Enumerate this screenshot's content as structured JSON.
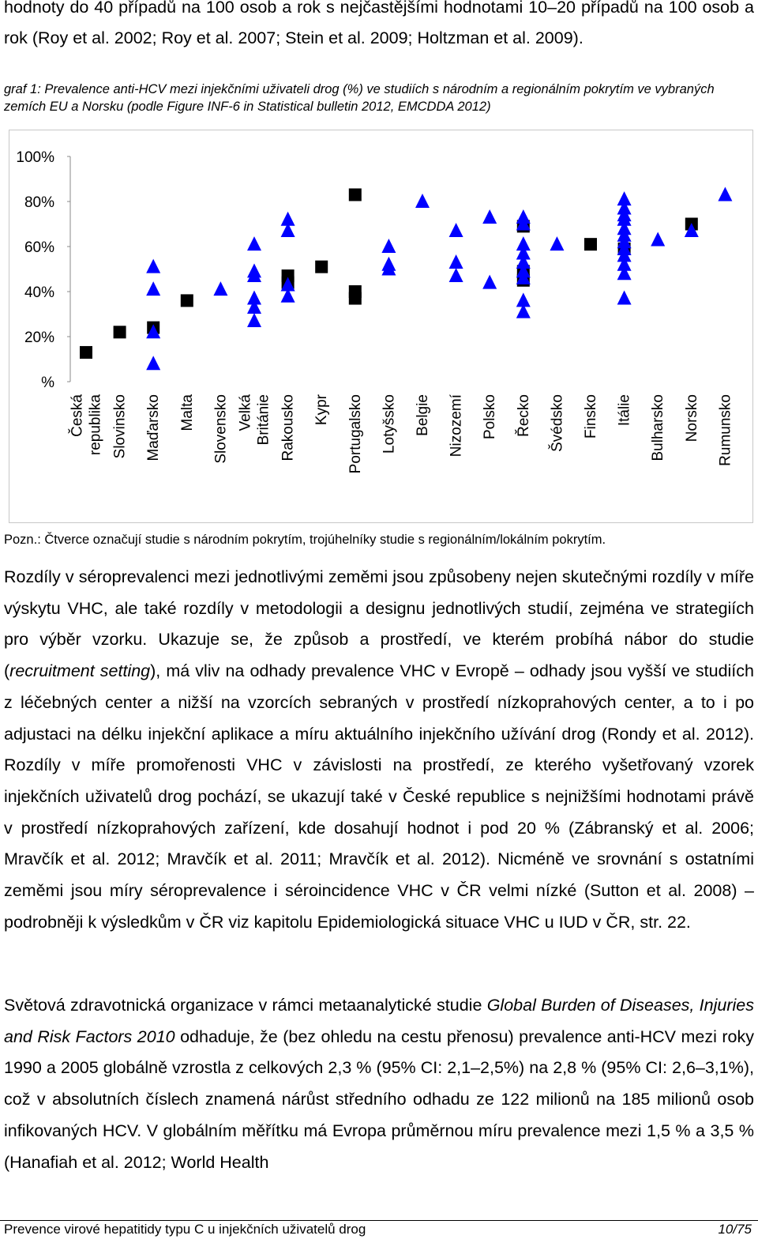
{
  "intro": "hodnoty do 40 případů na 100 osob a rok s nejčastějšími hodnotami 10–20 případů na 100 osob a rok (Roy et al. 2002; Roy et al. 2007; Stein et al. 2009; Holtzman et al. 2009).",
  "caption": "graf 1: Prevalence anti-HCV mezi injekčními uživateli drog (%) ve studiích s národním a regionálním pokrytím ve vybraných zemích EU a Norsku (podle Figure INF-6 in Statistical bulletin 2012, EMCDDA 2012)",
  "chart_data": {
    "type": "scatter",
    "title": "",
    "ylabel": "",
    "ylim": [
      0,
      100
    ],
    "yticks": [
      {
        "value": 0,
        "label": "%"
      },
      {
        "value": 20,
        "label": "20%"
      },
      {
        "value": 40,
        "label": "40%"
      },
      {
        "value": 60,
        "label": "60%"
      },
      {
        "value": 80,
        "label": "80%"
      },
      {
        "value": 100,
        "label": "100%"
      }
    ],
    "categories": [
      {
        "lines": [
          "Česká",
          "republika"
        ]
      },
      {
        "lines": [
          "Slovinsko"
        ]
      },
      {
        "lines": [
          "Maďarsko"
        ]
      },
      {
        "lines": [
          "Malta"
        ]
      },
      {
        "lines": [
          "Slovensko"
        ]
      },
      {
        "lines": [
          "Velká",
          "Británie"
        ]
      },
      {
        "lines": [
          "Rakousko"
        ]
      },
      {
        "lines": [
          "Kypr"
        ]
      },
      {
        "lines": [
          "Portugalsko"
        ]
      },
      {
        "lines": [
          "Lotyšsko"
        ]
      },
      {
        "lines": [
          "Belgie"
        ]
      },
      {
        "lines": [
          "Nizozemí"
        ]
      },
      {
        "lines": [
          "Polsko"
        ]
      },
      {
        "lines": [
          "Řecko"
        ]
      },
      {
        "lines": [
          "Švédsko"
        ]
      },
      {
        "lines": [
          "Finsko"
        ]
      },
      {
        "lines": [
          "Itálie"
        ]
      },
      {
        "lines": [
          "Bulharsko"
        ]
      },
      {
        "lines": [
          "Norsko"
        ]
      },
      {
        "lines": [
          "Rumunsko"
        ]
      }
    ],
    "series": [
      {
        "name": "národní pokrytí (čtverce)",
        "marker": "square",
        "values": [
          [
            13
          ],
          [
            22
          ],
          [
            24
          ],
          [
            36
          ],
          [],
          [],
          [
            47,
            44
          ],
          [
            51
          ],
          [
            83,
            40,
            37
          ],
          [],
          [],
          [],
          [],
          [
            69,
            49,
            45
          ],
          [],
          [
            61
          ],
          [
            59
          ],
          [],
          [
            70
          ],
          []
        ]
      },
      {
        "name": "regionální/lokální pokrytí (trojúhelníky)",
        "marker": "triangle",
        "values": [
          [],
          [],
          [
            51,
            41,
            22,
            8
          ],
          [],
          [
            41
          ],
          [
            61,
            49,
            47,
            37,
            33,
            27
          ],
          [
            72,
            67,
            43,
            38
          ],
          [],
          [],
          [
            60,
            52,
            50
          ],
          [
            80
          ],
          [
            67,
            53,
            47
          ],
          [
            73,
            44
          ],
          [
            73,
            70,
            61,
            57,
            53,
            49,
            46,
            36,
            31
          ],
          [
            61
          ],
          [],
          [
            81,
            77,
            74,
            72,
            68,
            65,
            62,
            59,
            56,
            52,
            48,
            37
          ],
          [
            63
          ],
          [
            67
          ],
          [
            83
          ]
        ]
      }
    ]
  },
  "note": "Pozn.: Čtverce označují studie s národním pokrytím, trojúhelníky studie s regionálním/lokálním pokrytím.",
  "para1": {
    "t1": "Rozdíly v séroprevalenci mezi jednotlivými zeměmi jsou způsobeny nejen skutečnými rozdíly v míře výskytu VHC, ale také rozdíly v metodologii a designu jednotlivých studií, zejména ve strategiích pro výběr vzorku. Ukazuje se, že způsob a prostředí, ve kterém probíhá nábor do studie (",
    "t2": "recruitment setting",
    "t3": "), má vliv na odhady prevalence VHC v Evropě – odhady jsou vyšší ve studiích z léčebných center a nižší na vzorcích sebraných v prostředí nízkoprahových center, a to i po adjustaci na délku injekční aplikace a míru aktuálního injekčního užívání drog (Rondy et al. 2012). Rozdíly v míře promořenosti VHC v závislosti na prostředí, ze kterého vyšetřovaný vzorek injekčních uživatelů drog pochází, se ukazují také v České republice s nejnižšími hodnotami právě v prostředí nízkoprahových zařízení, kde dosahují hodnot i pod 20 % (Zábranský et al. 2006; Mravčík et al. 2012; Mravčík et al. 2011; Mravčík et al. 2012). Nicméně ve srovnání s ostatními zeměmi jsou míry séroprevalence i séroincidence VHC v ČR velmi nízké (Sutton et al. 2008) – podrobněji k výsledkům v ČR viz kapitolu Epidemiologická situace VHC u IUD v ČR, str. 22."
  },
  "para2": {
    "t1": "Světová zdravotnická organizace v rámci metaanalytické studie ",
    "t2": "Global Burden of Diseases, Injuries and Risk Factors 2010",
    "t3": " odhaduje, že (bez ohledu na cestu přenosu) prevalence anti-HCV mezi roky 1990 a 2005 globálně vzrostla z celkových 2,3 % (95% CI: 2,1–2,5%) na 2,8 % (95% CI: 2,6–3,1%), což v absolutních číslech znamená nárůst středního odhadu ze 122 milionů na 185 milionů osob infikovaných HCV. V globálním měřítku má Evropa průměrnou míru prevalence mezi 1,5 % a 3,5 % (Hanafiah et al. 2012; World Health"
  },
  "footer": {
    "left": "Prevence virové hepatitidy typu C u injekčních uživatelů drog",
    "right": "10/75"
  }
}
